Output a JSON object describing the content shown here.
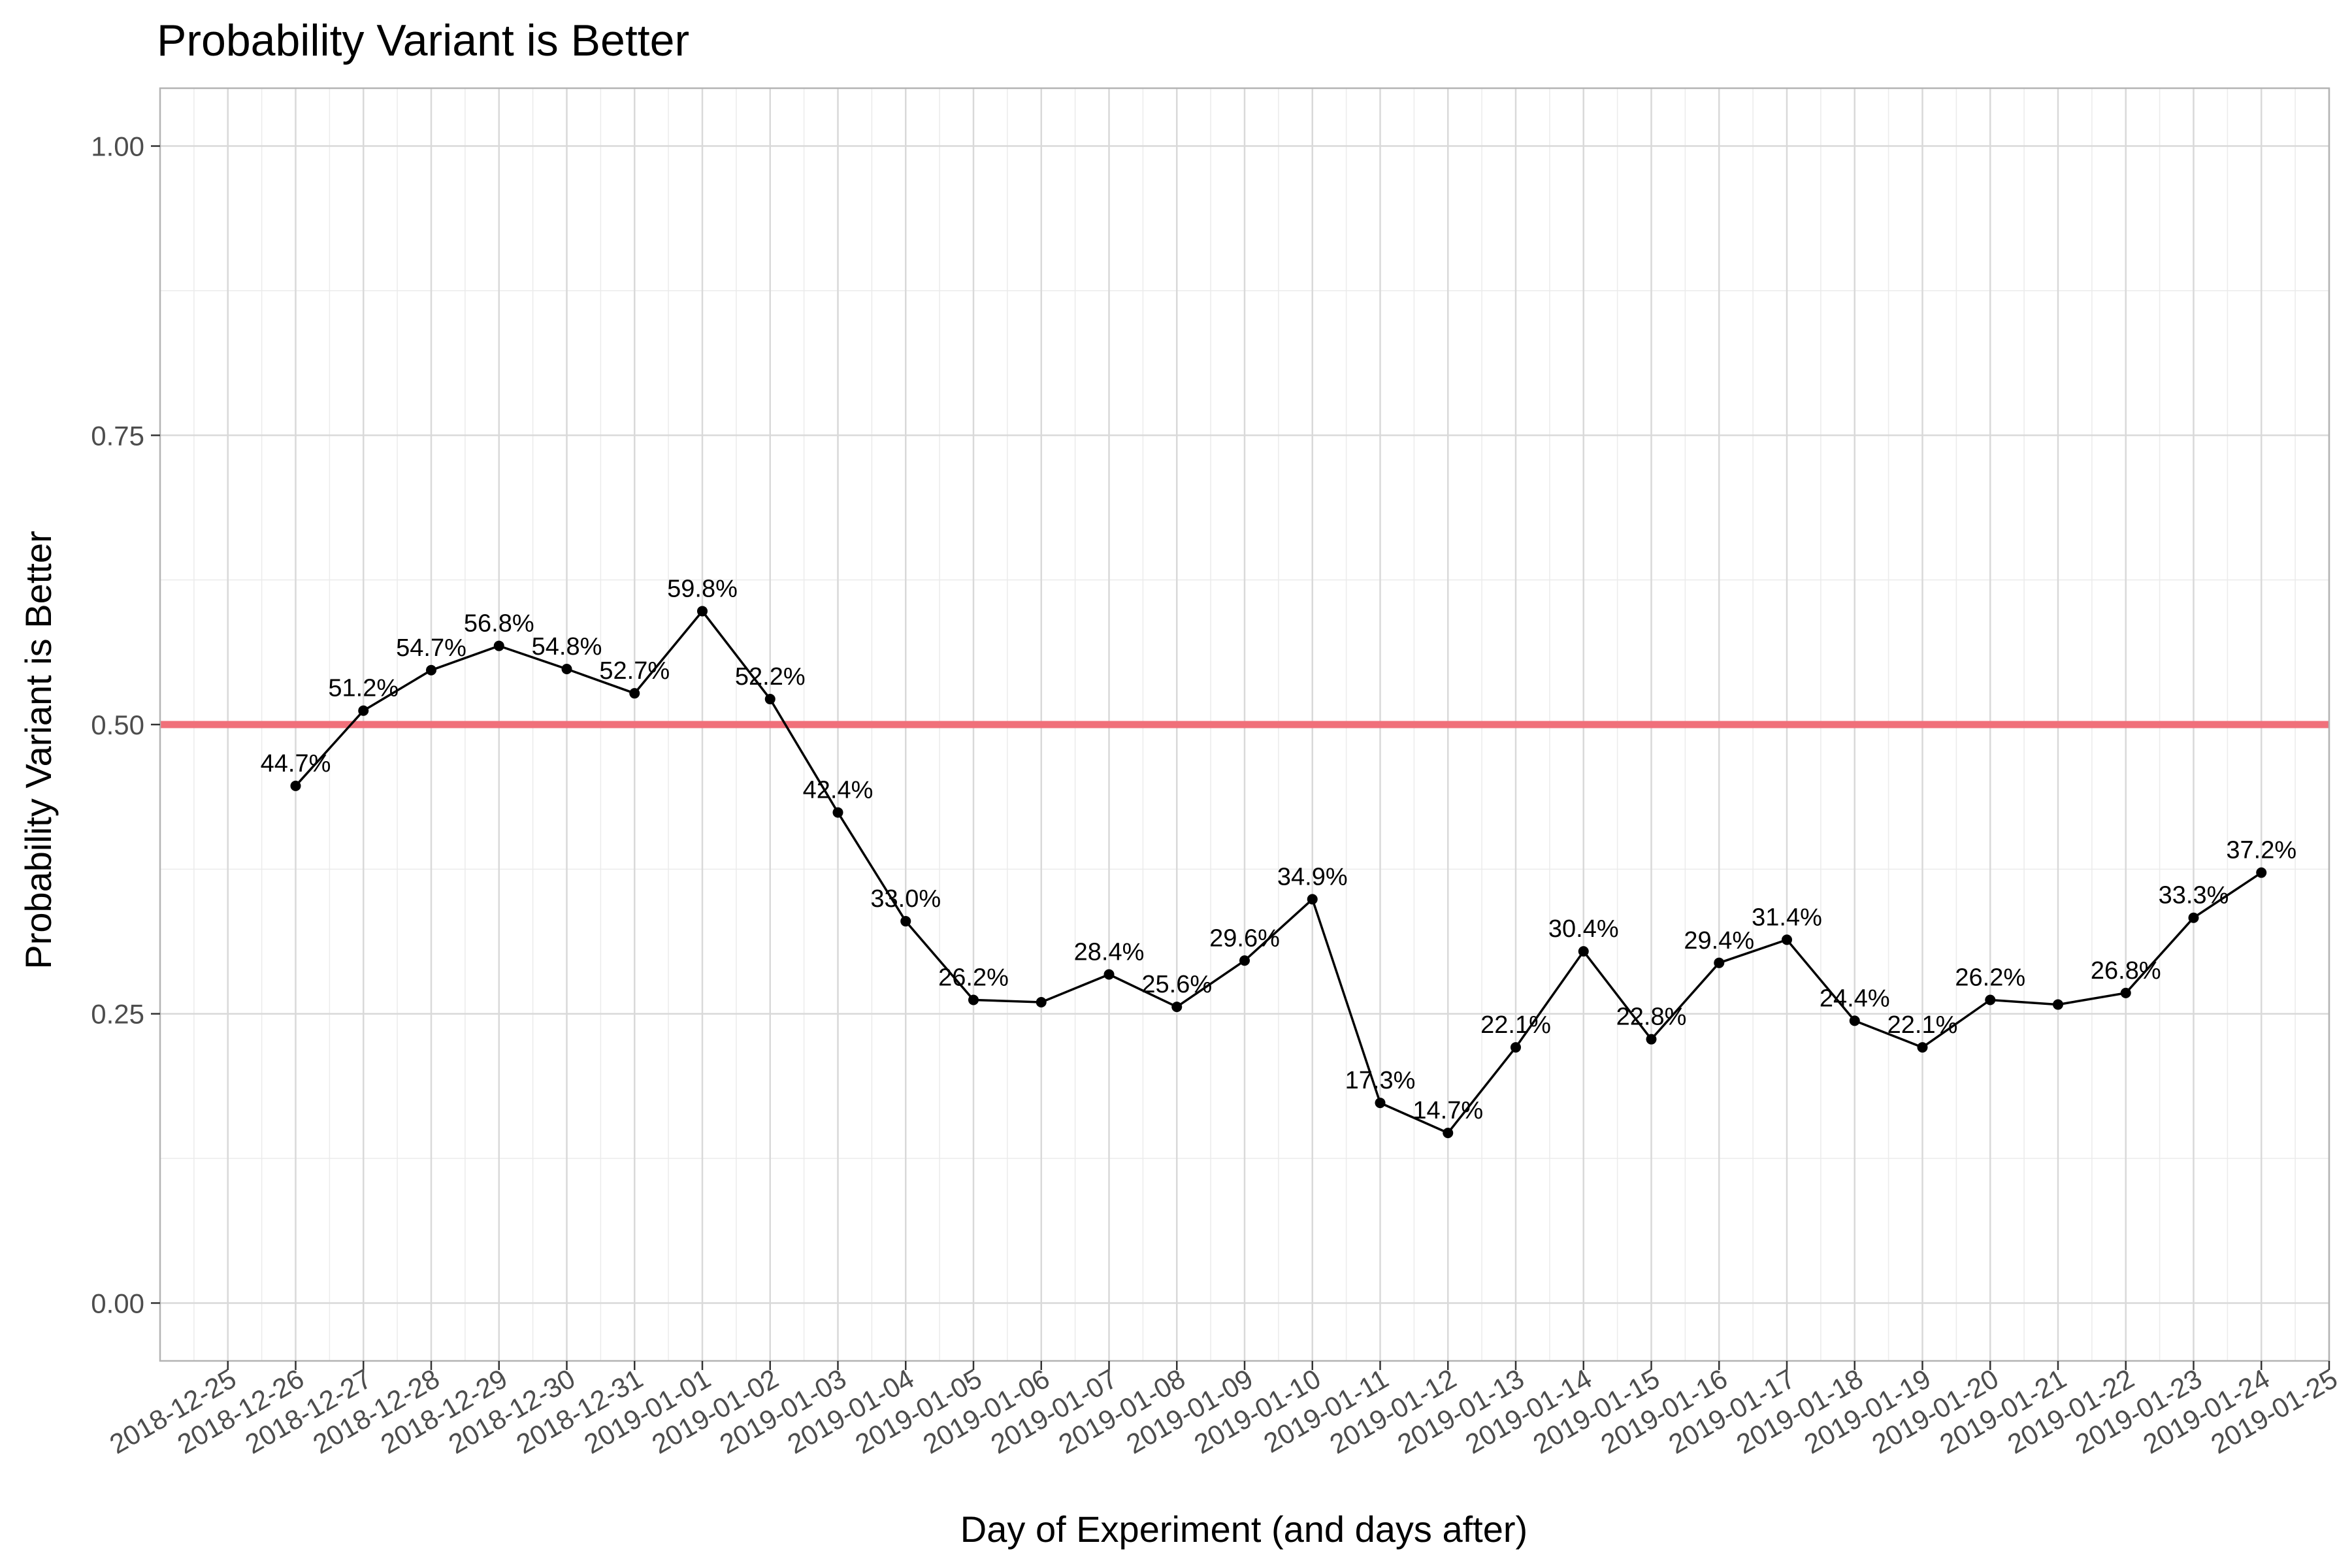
{
  "chart_data": {
    "type": "line",
    "title": "Probability Variant is Better",
    "xlabel": "Day of Experiment (and days after)",
    "ylabel": "Probability Variant is Better",
    "ylim": [
      -0.05,
      1.05
    ],
    "yticks": [
      "0.00",
      "0.25",
      "0.50",
      "0.75",
      "1.00"
    ],
    "xticks": [
      "2018-12-25",
      "2018-12-26",
      "2018-12-27",
      "2018-12-28",
      "2018-12-29",
      "2018-12-30",
      "2018-12-31",
      "2019-01-01",
      "2019-01-02",
      "2019-01-03",
      "2019-01-04",
      "2019-01-05",
      "2019-01-06",
      "2019-01-07",
      "2019-01-08",
      "2019-01-09",
      "2019-01-10",
      "2019-01-11",
      "2019-01-12",
      "2019-01-13",
      "2019-01-14",
      "2019-01-15",
      "2019-01-16",
      "2019-01-17",
      "2019-01-18",
      "2019-01-19",
      "2019-01-20",
      "2019-01-21",
      "2019-01-22",
      "2019-01-23",
      "2019-01-24",
      "2019-01-25"
    ],
    "xlim": [
      "2018-12-24",
      "2019-01-25"
    ],
    "grid": true,
    "reference_line": {
      "y": 0.5,
      "color": "#f0707a"
    },
    "line_color": "#000000",
    "points": [
      {
        "x": "2018-12-26",
        "y": 0.447,
        "label": "44.7%"
      },
      {
        "x": "2018-12-27",
        "y": 0.512,
        "label": "51.2%"
      },
      {
        "x": "2018-12-28",
        "y": 0.547,
        "label": "54.7%"
      },
      {
        "x": "2018-12-29",
        "y": 0.568,
        "label": "56.8%"
      },
      {
        "x": "2018-12-30",
        "y": 0.548,
        "label": "54.8%"
      },
      {
        "x": "2018-12-31",
        "y": 0.527,
        "label": "52.7%"
      },
      {
        "x": "2019-01-01",
        "y": 0.598,
        "label": "59.8%"
      },
      {
        "x": "2019-01-02",
        "y": 0.522,
        "label": "52.2%"
      },
      {
        "x": "2019-01-03",
        "y": 0.424,
        "label": "42.4%"
      },
      {
        "x": "2019-01-04",
        "y": 0.33,
        "label": "33.0%"
      },
      {
        "x": "2019-01-05",
        "y": 0.262,
        "label": "26.2%"
      },
      {
        "x": "2019-01-06",
        "y": 0.26,
        "label": ""
      },
      {
        "x": "2019-01-07",
        "y": 0.284,
        "label": "28.4%"
      },
      {
        "x": "2019-01-08",
        "y": 0.256,
        "label": "25.6%"
      },
      {
        "x": "2019-01-09",
        "y": 0.296,
        "label": "29.6%"
      },
      {
        "x": "2019-01-10",
        "y": 0.349,
        "label": "34.9%"
      },
      {
        "x": "2019-01-11",
        "y": 0.173,
        "label": "17.3%"
      },
      {
        "x": "2019-01-12",
        "y": 0.147,
        "label": "14.7%"
      },
      {
        "x": "2019-01-13",
        "y": 0.221,
        "label": "22.1%"
      },
      {
        "x": "2019-01-14",
        "y": 0.304,
        "label": "30.4%"
      },
      {
        "x": "2019-01-15",
        "y": 0.228,
        "label": "22.8%"
      },
      {
        "x": "2019-01-16",
        "y": 0.294,
        "label": "29.4%"
      },
      {
        "x": "2019-01-17",
        "y": 0.314,
        "label": "31.4%"
      },
      {
        "x": "2019-01-18",
        "y": 0.244,
        "label": "24.4%"
      },
      {
        "x": "2019-01-19",
        "y": 0.221,
        "label": "22.1%"
      },
      {
        "x": "2019-01-20",
        "y": 0.262,
        "label": "26.2%"
      },
      {
        "x": "2019-01-21",
        "y": 0.258,
        "label": ""
      },
      {
        "x": "2019-01-22",
        "y": 0.268,
        "label": "26.8%"
      },
      {
        "x": "2019-01-23",
        "y": 0.333,
        "label": "33.3%"
      },
      {
        "x": "2019-01-24",
        "y": 0.372,
        "label": "37.2%"
      }
    ]
  }
}
